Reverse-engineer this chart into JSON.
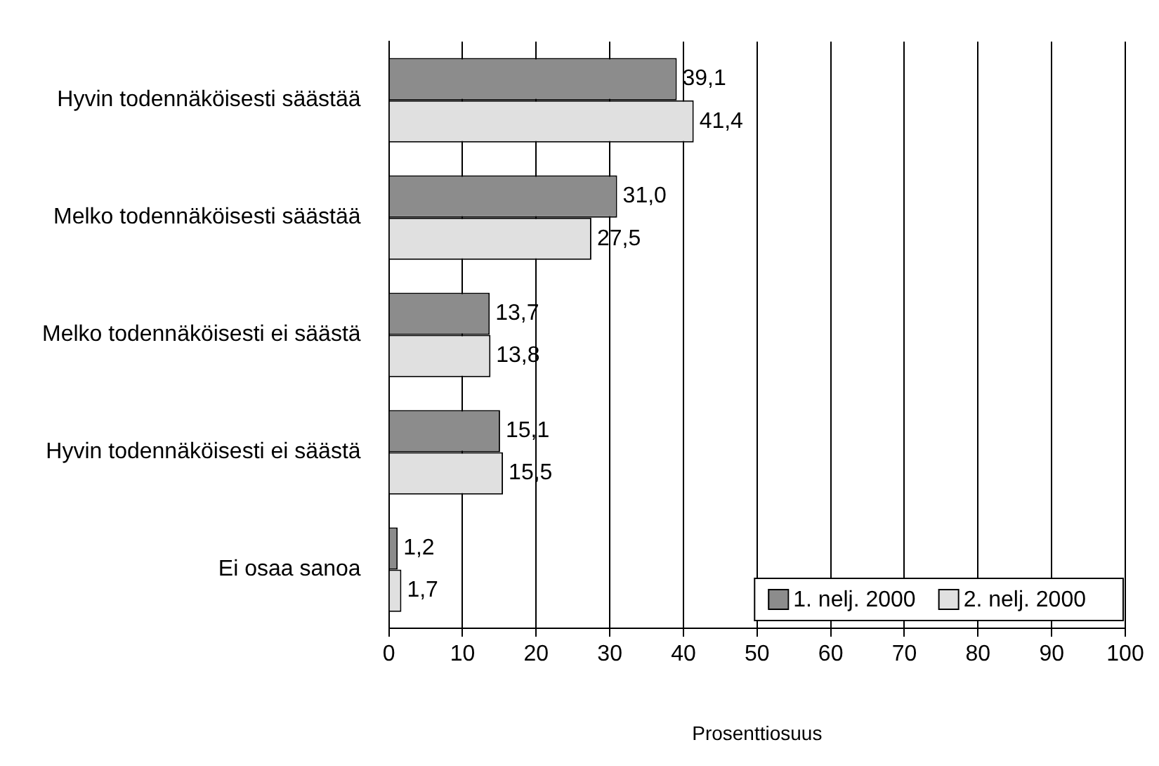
{
  "chart_data": {
    "type": "bar",
    "orientation": "horizontal",
    "xlabel": "Prosenttiosuus",
    "categories": [
      "Hyvin todennäköisesti säästää",
      "Melko todennäköisesti säästää",
      "Melko todennäköisesti ei säästä",
      "Hyvin todennäköisesti ei säästä",
      "Ei osaa sanoa"
    ],
    "series": [
      {
        "name": "1. nelj. 2000",
        "color": "#8c8c8c",
        "values": [
          39.1,
          31.0,
          13.7,
          15.1,
          1.2
        ],
        "value_labels": [
          "39,1",
          "31,0",
          "13,7",
          "15,1",
          "1,2"
        ]
      },
      {
        "name": "2. nelj. 2000",
        "color": "#e0e0e0",
        "values": [
          41.4,
          27.5,
          13.8,
          15.5,
          1.7
        ],
        "value_labels": [
          "41,4",
          "27,5",
          "13,8",
          "15,5",
          "1,7"
        ]
      }
    ],
    "xlim": [
      0,
      100
    ],
    "xticks": [
      0,
      10,
      20,
      30,
      40,
      50,
      60,
      70,
      80,
      90,
      100
    ],
    "grid": "x",
    "legend": "bottom right"
  }
}
